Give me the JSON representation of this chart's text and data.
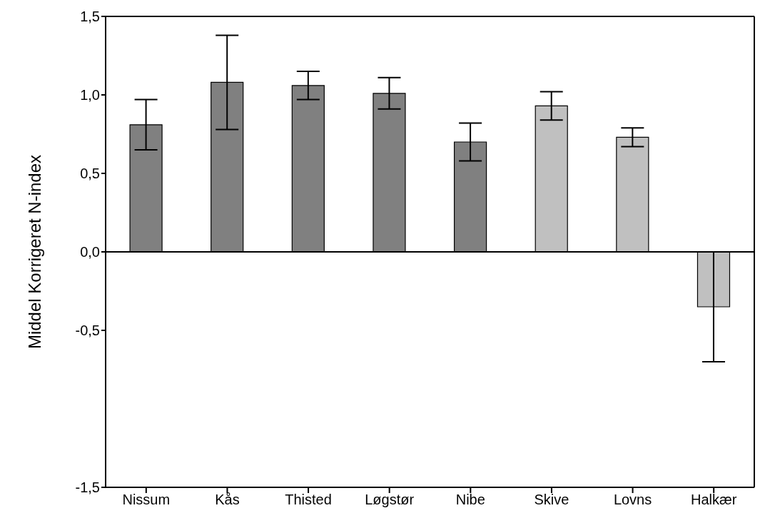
{
  "chart_data": {
    "type": "bar",
    "ylabel": "Middel Korrigeret N-index",
    "categories": [
      "Nissum",
      "Kås",
      "Thisted",
      "Løgstør",
      "Nibe",
      "Skive",
      "Lovns",
      "Halkær"
    ],
    "values": [
      0.81,
      1.08,
      1.06,
      1.01,
      0.7,
      0.93,
      0.73,
      -0.35
    ],
    "colors": [
      "#808080",
      "#808080",
      "#808080",
      "#808080",
      "#808080",
      "#c0c0c0",
      "#c0c0c0",
      "#c0c0c0"
    ],
    "errors": [
      0.16,
      0.3,
      0.09,
      0.1,
      0.12,
      0.09,
      0.06,
      0.35
    ],
    "ylim": [
      -1.5,
      1.5
    ],
    "yticks": [
      {
        "value": -1.5,
        "label": "-1,5"
      },
      {
        "value": -0.5,
        "label": "-0,5"
      },
      {
        "value": 0,
        "label": "0,0"
      },
      {
        "value": 0.5,
        "label": "0,5"
      },
      {
        "value": 1,
        "label": "1,0"
      },
      {
        "value": 1.5,
        "label": "1,5"
      }
    ],
    "ref_lines": [
      {
        "axis": "y",
        "value": 0,
        "label": null,
        "color": "#000000"
      }
    ],
    "grid": false,
    "legend": false
  }
}
